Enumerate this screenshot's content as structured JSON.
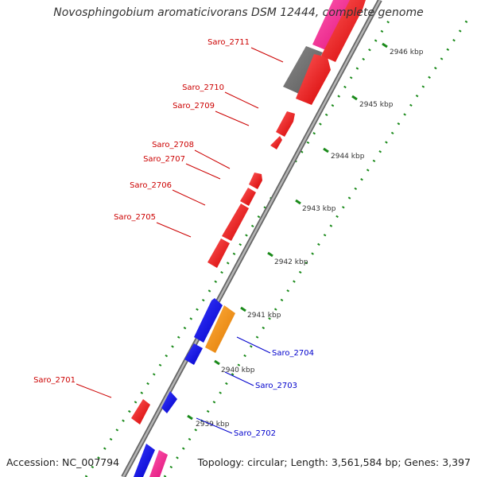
{
  "title": "Novosphingobium aromaticivorans DSM 12444, complete genome",
  "footer": {
    "accession": "Accession: NC_007794",
    "summary": "Topology: circular; Length: 3,561,584 bp; Genes: 3,397"
  },
  "colors": {
    "backbone": "#8a8a8a",
    "tick": "#1a8a1a",
    "forward_gene": "#ff0000",
    "reverse_gene": "#0000ff",
    "orange_feature": "#ff8c00",
    "pink_feature": "#ff1493",
    "gray_feature": "#6e6e6e",
    "forward_label": "#cc0000",
    "reverse_label": "#0000cc",
    "scale_label": "#333333"
  },
  "scale_labels": [
    "2939 kbp",
    "2940 kbp",
    "2941 kbp",
    "2942 kbp",
    "2943 kbp",
    "2944 kbp",
    "2945 kbp",
    "2946 kbp"
  ],
  "forward_labels": [
    "Saro_2711",
    "Saro_2710",
    "Saro_2709",
    "Saro_2708",
    "Saro_2707",
    "Saro_2706",
    "Saro_2705",
    "Saro_2701"
  ],
  "reverse_labels": [
    "Saro_2704",
    "Saro_2703",
    "Saro_2702"
  ]
}
